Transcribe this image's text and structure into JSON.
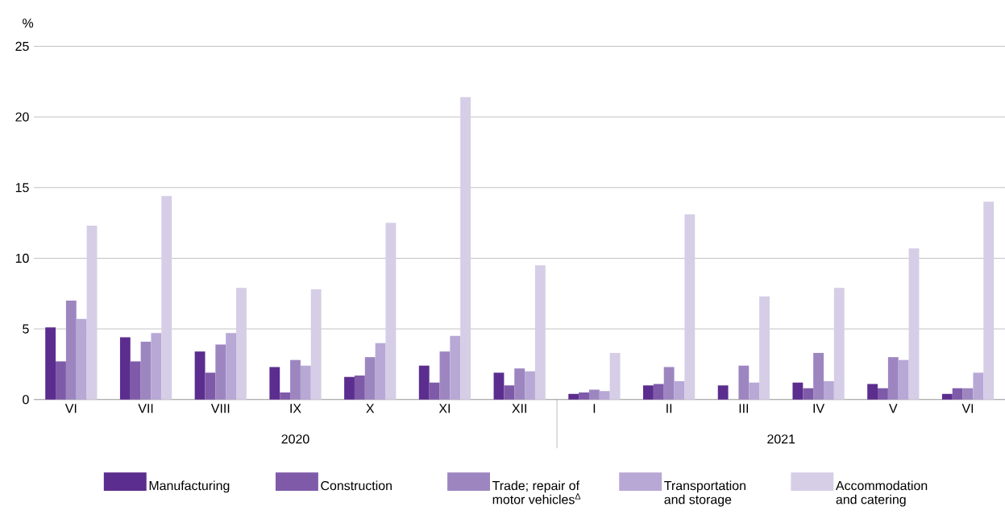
{
  "chart_data": {
    "type": "bar",
    "ylabel": "%",
    "categories": [
      "VI",
      "VII",
      "VIII",
      "IX",
      "X",
      "XI",
      "XII",
      "I",
      "II",
      "III",
      "IV",
      "V",
      "VI"
    ],
    "series": [
      {
        "name": "Manufacturing",
        "color": "#5b2d8e",
        "values": [
          5.1,
          4.4,
          3.4,
          2.3,
          1.6,
          2.4,
          1.9,
          0.4,
          1.0,
          1.0,
          1.2,
          1.1,
          0.4
        ]
      },
      {
        "name": "Construction",
        "color": "#7e5aa8",
        "values": [
          2.7,
          2.7,
          1.9,
          0.5,
          1.7,
          1.2,
          1.0,
          0.5,
          1.1,
          null,
          0.8,
          0.8,
          0.8
        ]
      },
      {
        "name": "Trade; repair of motor vehicles$^{Δ}$",
        "color": "#9d86c0",
        "values": [
          7.0,
          4.1,
          3.9,
          2.8,
          3.0,
          3.4,
          2.2,
          0.7,
          2.3,
          2.4,
          3.3,
          3.0,
          0.8
        ]
      },
      {
        "name": "Transportation and storage",
        "color": "#b8a8d6",
        "values": [
          5.7,
          4.7,
          4.7,
          2.4,
          4.0,
          4.5,
          2.0,
          0.6,
          1.3,
          1.2,
          1.3,
          2.8,
          1.9
        ]
      },
      {
        "name": "Accommodation and catering",
        "color": "#d6cde6",
        "values": [
          12.3,
          14.4,
          7.9,
          7.8,
          12.5,
          21.4,
          9.5,
          3.3,
          13.1,
          7.3,
          7.9,
          10.7,
          14.0
        ]
      }
    ],
    "annotations": [
      "2020",
      "2021"
    ],
    "ylim": [
      0,
      25
    ],
    "yticks": [
      0,
      5,
      10,
      15,
      20,
      25
    ],
    "grid": "y",
    "legend": "bottom"
  }
}
